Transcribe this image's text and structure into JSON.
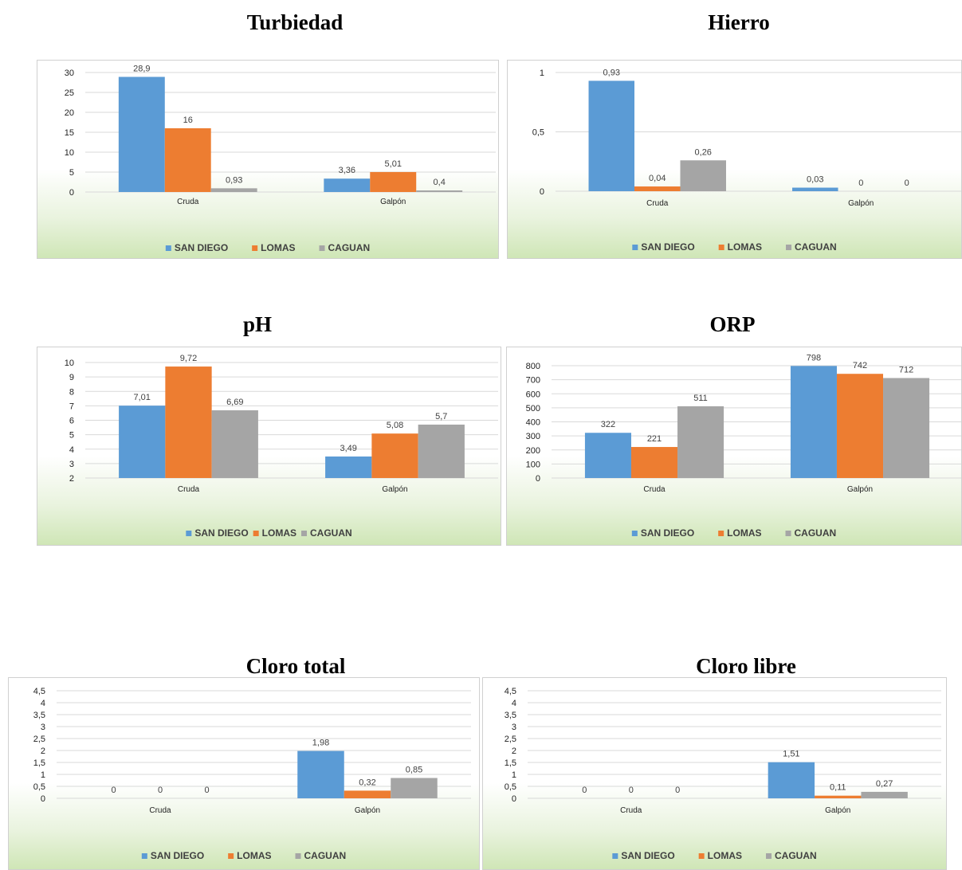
{
  "colors": {
    "san_diego": "#5b9bd5",
    "lomas": "#ed7d31",
    "caguan": "#a5a5a5"
  },
  "chart_data": [
    {
      "id": "turbiedad",
      "type": "bar",
      "title": "Turbiedad",
      "categories": [
        "Cruda",
        "Galpón"
      ],
      "series": [
        {
          "name": "SAN DIEGO",
          "values": [
            28.9,
            3.36
          ],
          "labels": [
            "28,9",
            "3,36"
          ]
        },
        {
          "name": "LOMAS",
          "values": [
            16,
            5.01
          ],
          "labels": [
            "16",
            "5,01"
          ]
        },
        {
          "name": "CAGUAN",
          "values": [
            0.93,
            0.4
          ],
          "labels": [
            "0,93",
            "0,4"
          ]
        }
      ],
      "ylim": [
        0,
        30
      ],
      "yticks": [
        0,
        5,
        10,
        15,
        20,
        25,
        30
      ],
      "yticklabels": [
        "0",
        "5",
        "10",
        "15",
        "20",
        "25",
        "30"
      ],
      "grid": true,
      "legend": "bottom"
    },
    {
      "id": "hierro",
      "type": "bar",
      "title": "Hierro",
      "categories": [
        "Cruda",
        "Galpón"
      ],
      "series": [
        {
          "name": "SAN DIEGO",
          "values": [
            0.93,
            0.03
          ],
          "labels": [
            "0,93",
            "0,03"
          ]
        },
        {
          "name": "LOMAS",
          "values": [
            0.04,
            0
          ],
          "labels": [
            "0,04",
            "0"
          ]
        },
        {
          "name": "CAGUAN",
          "values": [
            0.26,
            0
          ],
          "labels": [
            "0,26",
            "0"
          ]
        }
      ],
      "ylim": [
        0,
        1
      ],
      "yticks": [
        0,
        0.5,
        1
      ],
      "yticklabels": [
        "0",
        "0,5",
        "1"
      ],
      "grid": true,
      "legend": "bottom"
    },
    {
      "id": "ph",
      "type": "bar",
      "title": "pH",
      "categories": [
        "Cruda",
        "Galpón"
      ],
      "series": [
        {
          "name": "SAN DIEGO",
          "values": [
            7.01,
            3.49
          ],
          "labels": [
            "7,01",
            "3,49"
          ]
        },
        {
          "name": "LOMAS",
          "values": [
            9.72,
            5.08
          ],
          "labels": [
            "9,72",
            "5,08"
          ]
        },
        {
          "name": "CAGUAN",
          "values": [
            6.69,
            5.7
          ],
          "labels": [
            "6,69",
            "5,7"
          ]
        }
      ],
      "ylim": [
        2,
        10
      ],
      "yticks": [
        2,
        3,
        4,
        5,
        6,
        7,
        8,
        9,
        10
      ],
      "yticklabels": [
        "2",
        "3",
        "4",
        "5",
        "6",
        "7",
        "8",
        "9",
        "10"
      ],
      "grid": true,
      "legend": "bottom"
    },
    {
      "id": "orp",
      "type": "bar",
      "title": "ORP",
      "categories": [
        "Cruda",
        "Galpón"
      ],
      "series": [
        {
          "name": "SAN DIEGO",
          "values": [
            322,
            798
          ],
          "labels": [
            "322",
            "798"
          ]
        },
        {
          "name": "LOMAS",
          "values": [
            221,
            742
          ],
          "labels": [
            "221",
            "742"
          ]
        },
        {
          "name": "CAGUAN",
          "values": [
            511,
            712
          ],
          "labels": [
            "511",
            "712"
          ]
        }
      ],
      "ylim": [
        0,
        800
      ],
      "yticks": [
        0,
        100,
        200,
        300,
        400,
        500,
        600,
        700,
        800
      ],
      "yticklabels": [
        "0",
        "100",
        "200",
        "300",
        "400",
        "500",
        "600",
        "700",
        "800"
      ],
      "grid": true,
      "legend": "bottom"
    },
    {
      "id": "cloro-total",
      "type": "bar",
      "title": "Cloro total",
      "categories": [
        "Cruda",
        "Galpón"
      ],
      "series": [
        {
          "name": "SAN DIEGO",
          "values": [
            0,
            1.98
          ],
          "labels": [
            "0",
            "1,98"
          ]
        },
        {
          "name": "LOMAS",
          "values": [
            0,
            0.32
          ],
          "labels": [
            "0",
            "0,32"
          ]
        },
        {
          "name": "CAGUAN",
          "values": [
            0,
            0.85
          ],
          "labels": [
            "0",
            "0,85"
          ]
        }
      ],
      "ylim": [
        0,
        4.5
      ],
      "yticks": [
        0,
        0.5,
        1,
        1.5,
        2,
        2.5,
        3,
        3.5,
        4,
        4.5
      ],
      "yticklabels": [
        "0",
        "0,5",
        "1",
        "1,5",
        "2",
        "2,5",
        "3",
        "3,5",
        "4",
        "4,5"
      ],
      "grid": true,
      "legend": "bottom"
    },
    {
      "id": "cloro-libre",
      "type": "bar",
      "title": "Cloro libre",
      "categories": [
        "Cruda",
        "Galpón"
      ],
      "series": [
        {
          "name": "SAN DIEGO",
          "values": [
            0,
            1.51
          ],
          "labels": [
            "0",
            "1,51"
          ]
        },
        {
          "name": "LOMAS",
          "values": [
            0,
            0.11
          ],
          "labels": [
            "0",
            "0,11"
          ]
        },
        {
          "name": "CAGUAN",
          "values": [
            0,
            0.27
          ],
          "labels": [
            "0",
            "0,27"
          ]
        }
      ],
      "ylim": [
        0,
        4.5
      ],
      "yticks": [
        0,
        0.5,
        1,
        1.5,
        2,
        2.5,
        3,
        3.5,
        4,
        4.5
      ],
      "yticklabels": [
        "0",
        "0,5",
        "1",
        "1,5",
        "2",
        "2,5",
        "3",
        "3,5",
        "4",
        "4,5"
      ],
      "grid": true,
      "legend": "bottom"
    }
  ]
}
